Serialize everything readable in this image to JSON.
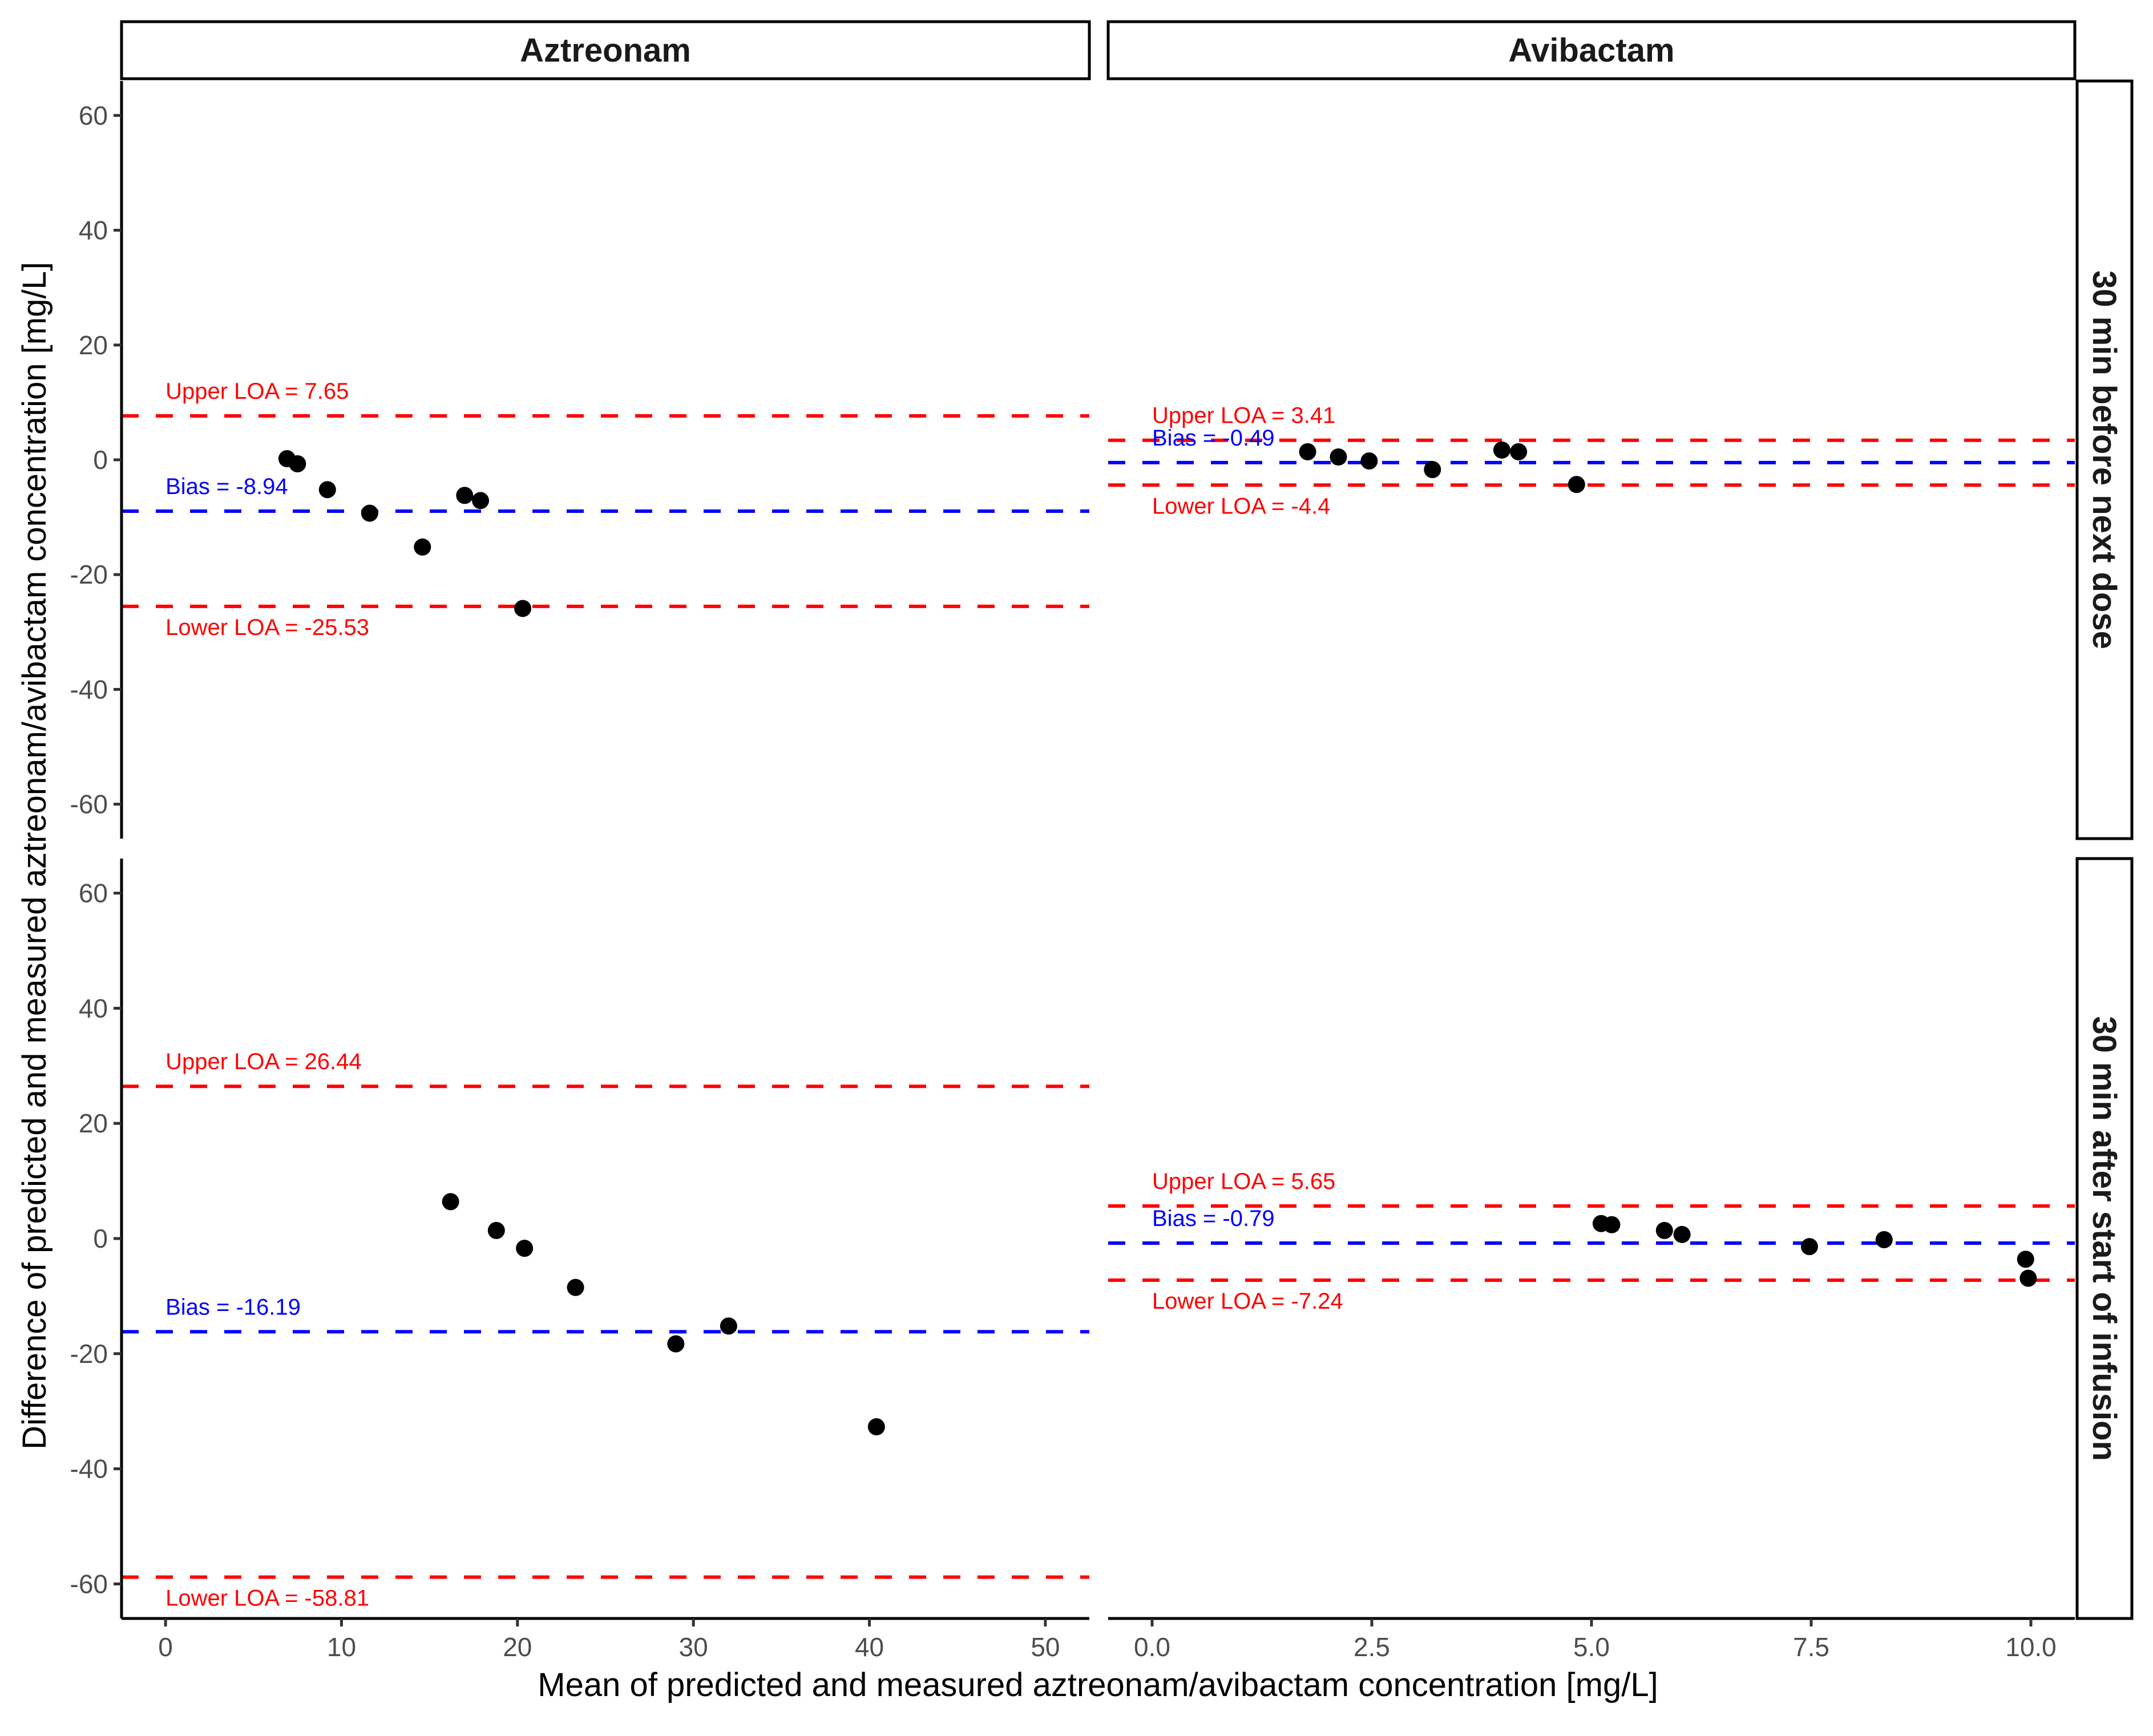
{
  "chart_data": {
    "type": "scatter",
    "subtype": "bland-altman faceted",
    "xlabel": "Mean of predicted and measured aztreonam/avibactam concentration [mg/L]",
    "ylabel": "Difference of predicted and measured aztreonam/avibactam concentration [mg/L]",
    "column_facets": [
      "Aztreonam",
      "Avibactam"
    ],
    "row_facets": [
      "30 min before next dose",
      "30 min after start of infusion"
    ],
    "y_ticks": [
      60,
      40,
      20,
      0,
      -20,
      -40,
      -60
    ],
    "ylim": [
      -66,
      66
    ],
    "x_axes": {
      "Aztreonam": {
        "ticks": [
          "0",
          "10",
          "20",
          "30",
          "40",
          "50"
        ],
        "xlim": [
          -2.5,
          52.5
        ]
      },
      "Avibactam": {
        "ticks": [
          "0.0",
          "2.5",
          "5.0",
          "7.5",
          "10.0"
        ],
        "xlim": [
          -0.5,
          10.5
        ]
      }
    },
    "colors": {
      "loa": "#ff0000",
      "bias": "#0000ff",
      "points": "#000000"
    },
    "grid": false,
    "panels": [
      {
        "column": "Aztreonam",
        "row": "30 min before next dose",
        "upper_loa": 7.65,
        "bias": -8.94,
        "lower_loa": -25.53,
        "labels": {
          "upper": "Upper LOA = 7.65",
          "bias": "Bias = -8.94",
          "lower": "Lower LOA = -25.53"
        },
        "points": {
          "x": [
            6.9,
            7.5,
            9.2,
            11.6,
            14.6,
            17.0,
            17.9,
            20.3
          ],
          "y": [
            0.2,
            -0.7,
            -5.2,
            -9.3,
            -15.2,
            -6.2,
            -7.1,
            -25.9
          ]
        }
      },
      {
        "column": "Avibactam",
        "row": "30 min before next dose",
        "upper_loa": 3.41,
        "bias": -0.49,
        "lower_loa": -4.4,
        "labels": {
          "upper": "Upper LOA = 3.41",
          "bias": "Bias = -0.49",
          "lower": "Lower LOA = -4.4"
        },
        "points": {
          "x": [
            1.77,
            2.12,
            2.47,
            3.19,
            3.98,
            4.17,
            4.83
          ],
          "y": [
            1.4,
            0.5,
            -0.2,
            -1.7,
            1.7,
            1.4,
            -4.3
          ]
        }
      },
      {
        "column": "Aztreonam",
        "row": "30 min after start of infusion",
        "upper_loa": 26.44,
        "bias": -16.19,
        "lower_loa": -58.81,
        "labels": {
          "upper": "Upper LOA = 26.44",
          "bias": "Bias = -16.19",
          "lower": "Lower LOA = -58.81"
        },
        "points": {
          "x": [
            16.2,
            18.8,
            20.4,
            23.3,
            29.0,
            32.0,
            40.4
          ],
          "y": [
            6.4,
            1.4,
            -1.7,
            -8.5,
            -18.3,
            -15.2,
            -32.7
          ]
        }
      },
      {
        "column": "Avibactam",
        "row": "30 min after start of infusion",
        "upper_loa": 5.65,
        "bias": -0.79,
        "lower_loa": -7.24,
        "labels": {
          "upper": "Upper LOA = 5.65",
          "bias": "Bias = -0.79",
          "lower": "Lower LOA = -7.24"
        },
        "points": {
          "x": [
            5.11,
            5.23,
            5.83,
            6.03,
            7.48,
            8.33,
            9.94,
            9.97
          ],
          "y": [
            2.6,
            2.4,
            1.4,
            0.7,
            -1.4,
            -0.2,
            -3.6,
            -6.9
          ]
        }
      }
    ]
  }
}
